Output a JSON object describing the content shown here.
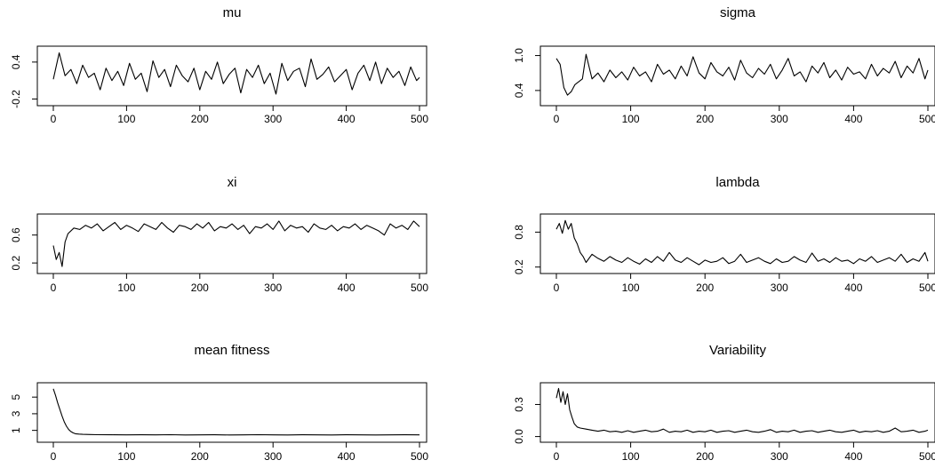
{
  "chart_data": [
    {
      "type": "line",
      "title": "mu",
      "xlabel": "",
      "ylabel": "",
      "xlim": [
        0,
        500
      ],
      "ylim": [
        -0.25,
        0.6
      ],
      "x_ticks": [
        0,
        100,
        200,
        300,
        400,
        500
      ],
      "y_ticks": [
        -0.2,
        0.4
      ],
      "y_tick_labels": [
        "-0.2",
        "0.4"
      ],
      "grid": false,
      "series": [
        {
          "x": [
            0,
            8,
            16,
            24,
            32,
            40,
            48,
            56,
            64,
            72,
            80,
            88,
            96,
            104,
            112,
            120,
            128,
            136,
            144,
            152,
            160,
            168,
            176,
            184,
            192,
            200,
            208,
            216,
            224,
            232,
            240,
            248,
            256,
            264,
            272,
            280,
            288,
            296,
            304,
            312,
            320,
            328,
            336,
            344,
            352,
            360,
            368,
            376,
            384,
            392,
            400,
            408,
            416,
            424,
            432,
            440,
            448,
            456,
            464,
            472,
            480,
            488,
            496,
            500
          ],
          "values": [
            0.12,
            0.55,
            0.18,
            0.28,
            0.05,
            0.35,
            0.15,
            0.22,
            -0.05,
            0.3,
            0.1,
            0.25,
            0.02,
            0.38,
            0.12,
            0.22,
            -0.08,
            0.42,
            0.15,
            0.28,
            0.0,
            0.35,
            0.18,
            0.08,
            0.3,
            -0.05,
            0.25,
            0.12,
            0.4,
            0.05,
            0.2,
            0.3,
            -0.1,
            0.28,
            0.15,
            0.35,
            0.05,
            0.22,
            -0.12,
            0.38,
            0.1,
            0.25,
            0.3,
            0.0,
            0.45,
            0.12,
            0.2,
            0.32,
            0.08,
            0.18,
            0.28,
            -0.05,
            0.22,
            0.35,
            0.1,
            0.4,
            0.05,
            0.3,
            0.15,
            0.25,
            0.02,
            0.32,
            0.1,
            0.15
          ]
        }
      ]
    },
    {
      "type": "line",
      "title": "sigma",
      "xlabel": "",
      "ylabel": "",
      "xlim": [
        0,
        500
      ],
      "ylim": [
        0.2,
        1.1
      ],
      "x_ticks": [
        0,
        100,
        200,
        300,
        400,
        500
      ],
      "y_ticks": [
        0.4,
        1.0
      ],
      "y_tick_labels": [
        "0.4",
        "1.0"
      ],
      "grid": false,
      "series": [
        {
          "x": [
            0,
            5,
            10,
            15,
            20,
            25,
            30,
            35,
            40,
            48,
            56,
            64,
            72,
            80,
            88,
            96,
            104,
            112,
            120,
            128,
            136,
            144,
            152,
            160,
            168,
            176,
            184,
            192,
            200,
            208,
            216,
            224,
            232,
            240,
            248,
            256,
            264,
            272,
            280,
            288,
            296,
            304,
            312,
            320,
            328,
            336,
            344,
            352,
            360,
            368,
            376,
            384,
            392,
            400,
            408,
            416,
            424,
            432,
            440,
            448,
            456,
            464,
            472,
            480,
            488,
            496,
            500
          ],
          "values": [
            0.95,
            0.85,
            0.45,
            0.32,
            0.38,
            0.5,
            0.55,
            0.6,
            1.02,
            0.6,
            0.7,
            0.55,
            0.75,
            0.62,
            0.72,
            0.58,
            0.8,
            0.65,
            0.72,
            0.55,
            0.85,
            0.68,
            0.75,
            0.6,
            0.82,
            0.65,
            0.98,
            0.7,
            0.6,
            0.88,
            0.72,
            0.65,
            0.8,
            0.58,
            0.92,
            0.7,
            0.62,
            0.78,
            0.68,
            0.85,
            0.6,
            0.75,
            0.95,
            0.65,
            0.72,
            0.55,
            0.82,
            0.7,
            0.88,
            0.62,
            0.75,
            0.58,
            0.8,
            0.68,
            0.72,
            0.6,
            0.85,
            0.65,
            0.78,
            0.7,
            0.9,
            0.62,
            0.82,
            0.7,
            0.95,
            0.6,
            0.75
          ]
        }
      ]
    },
    {
      "type": "line",
      "title": "xi",
      "xlabel": "",
      "ylabel": "",
      "xlim": [
        0,
        500
      ],
      "ylim": [
        0.1,
        0.85
      ],
      "x_ticks": [
        0,
        100,
        200,
        300,
        400,
        500
      ],
      "y_ticks": [
        0.2,
        0.6
      ],
      "y_tick_labels": [
        "0.2",
        "0.6"
      ],
      "grid": false,
      "series": [
        {
          "x": [
            0,
            4,
            8,
            12,
            16,
            20,
            28,
            36,
            44,
            52,
            60,
            68,
            76,
            84,
            92,
            100,
            108,
            116,
            124,
            132,
            140,
            148,
            156,
            164,
            172,
            180,
            188,
            196,
            204,
            212,
            220,
            228,
            236,
            244,
            252,
            260,
            268,
            276,
            284,
            292,
            300,
            308,
            316,
            324,
            332,
            340,
            348,
            356,
            364,
            372,
            380,
            388,
            396,
            404,
            412,
            420,
            428,
            436,
            444,
            452,
            460,
            468,
            476,
            484,
            492,
            500
          ],
          "values": [
            0.45,
            0.25,
            0.35,
            0.15,
            0.5,
            0.62,
            0.7,
            0.68,
            0.74,
            0.7,
            0.76,
            0.66,
            0.72,
            0.78,
            0.68,
            0.74,
            0.7,
            0.65,
            0.76,
            0.72,
            0.68,
            0.78,
            0.7,
            0.64,
            0.74,
            0.72,
            0.68,
            0.76,
            0.7,
            0.78,
            0.66,
            0.72,
            0.7,
            0.76,
            0.68,
            0.74,
            0.62,
            0.72,
            0.7,
            0.76,
            0.68,
            0.8,
            0.66,
            0.74,
            0.7,
            0.72,
            0.64,
            0.76,
            0.7,
            0.68,
            0.74,
            0.66,
            0.72,
            0.7,
            0.76,
            0.68,
            0.74,
            0.7,
            0.66,
            0.6,
            0.76,
            0.7,
            0.74,
            0.68,
            0.8,
            0.72
          ]
        }
      ]
    },
    {
      "type": "line",
      "title": "lambda",
      "xlabel": "",
      "ylabel": "",
      "xlim": [
        0,
        500
      ],
      "ylim": [
        0.15,
        1.05
      ],
      "x_ticks": [
        0,
        100,
        200,
        300,
        400,
        500
      ],
      "y_ticks": [
        0.2,
        0.8
      ],
      "y_tick_labels": [
        "0.2",
        "0.8"
      ],
      "grid": false,
      "series": [
        {
          "x": [
            0,
            4,
            8,
            12,
            16,
            20,
            24,
            28,
            32,
            36,
            40,
            48,
            56,
            64,
            72,
            80,
            88,
            96,
            104,
            112,
            120,
            128,
            136,
            144,
            152,
            160,
            168,
            176,
            184,
            192,
            200,
            208,
            216,
            224,
            232,
            240,
            248,
            256,
            264,
            272,
            280,
            288,
            296,
            304,
            312,
            320,
            328,
            336,
            344,
            352,
            360,
            368,
            376,
            384,
            392,
            400,
            408,
            416,
            424,
            432,
            440,
            448,
            456,
            464,
            472,
            480,
            488,
            496,
            500
          ],
          "values": [
            0.85,
            0.95,
            0.78,
            1.0,
            0.85,
            0.95,
            0.7,
            0.6,
            0.45,
            0.38,
            0.28,
            0.42,
            0.35,
            0.3,
            0.38,
            0.32,
            0.28,
            0.36,
            0.3,
            0.25,
            0.34,
            0.28,
            0.38,
            0.3,
            0.45,
            0.32,
            0.28,
            0.36,
            0.3,
            0.24,
            0.32,
            0.28,
            0.3,
            0.36,
            0.26,
            0.3,
            0.42,
            0.28,
            0.32,
            0.36,
            0.3,
            0.26,
            0.34,
            0.28,
            0.3,
            0.38,
            0.32,
            0.28,
            0.44,
            0.3,
            0.34,
            0.28,
            0.36,
            0.3,
            0.32,
            0.26,
            0.34,
            0.3,
            0.38,
            0.28,
            0.32,
            0.36,
            0.3,
            0.42,
            0.28,
            0.34,
            0.3,
            0.45,
            0.3
          ]
        }
      ]
    },
    {
      "type": "line",
      "title": "mean fitness",
      "xlabel": "",
      "ylabel": "",
      "xlim": [
        0,
        500
      ],
      "ylim": [
        0,
        6.3
      ],
      "x_ticks": [
        0,
        100,
        200,
        300,
        400,
        500
      ],
      "y_ticks": [
        1,
        3,
        5
      ],
      "y_tick_labels": [
        "1",
        "3",
        "5"
      ],
      "grid": false,
      "series": [
        {
          "x": [
            0,
            3,
            6,
            9,
            12,
            15,
            18,
            21,
            24,
            27,
            30,
            35,
            40,
            50,
            60,
            80,
            100,
            120,
            140,
            160,
            180,
            200,
            220,
            240,
            260,
            280,
            300,
            320,
            340,
            360,
            380,
            400,
            420,
            440,
            460,
            480,
            500
          ],
          "values": [
            6.0,
            5.2,
            4.3,
            3.5,
            2.7,
            2.0,
            1.5,
            1.1,
            0.85,
            0.7,
            0.6,
            0.55,
            0.52,
            0.5,
            0.48,
            0.47,
            0.46,
            0.47,
            0.46,
            0.48,
            0.45,
            0.46,
            0.47,
            0.45,
            0.46,
            0.48,
            0.46,
            0.45,
            0.47,
            0.46,
            0.45,
            0.47,
            0.46,
            0.45,
            0.46,
            0.47,
            0.46
          ]
        }
      ]
    },
    {
      "type": "line",
      "title": "Variability",
      "xlabel": "",
      "ylabel": "",
      "xlim": [
        0,
        500
      ],
      "ylim": [
        -0.02,
        0.47
      ],
      "x_ticks": [
        0,
        100,
        200,
        300,
        400,
        500
      ],
      "y_ticks": [
        0.0,
        0.3
      ],
      "y_tick_labels": [
        "0.0",
        "0.3"
      ],
      "grid": false,
      "series": [
        {
          "x": [
            0,
            3,
            6,
            9,
            12,
            15,
            18,
            21,
            24,
            28,
            32,
            40,
            48,
            56,
            64,
            72,
            80,
            88,
            96,
            104,
            112,
            120,
            128,
            136,
            144,
            152,
            160,
            168,
            176,
            184,
            192,
            200,
            208,
            216,
            224,
            232,
            240,
            248,
            256,
            264,
            272,
            280,
            288,
            296,
            304,
            312,
            320,
            328,
            336,
            344,
            352,
            360,
            368,
            376,
            384,
            392,
            400,
            408,
            416,
            424,
            432,
            440,
            448,
            456,
            464,
            472,
            480,
            488,
            496,
            500
          ],
          "values": [
            0.36,
            0.45,
            0.32,
            0.42,
            0.3,
            0.4,
            0.25,
            0.18,
            0.12,
            0.09,
            0.08,
            0.07,
            0.06,
            0.05,
            0.06,
            0.045,
            0.05,
            0.04,
            0.055,
            0.04,
            0.05,
            0.06,
            0.045,
            0.05,
            0.07,
            0.04,
            0.05,
            0.045,
            0.06,
            0.04,
            0.05,
            0.045,
            0.06,
            0.04,
            0.05,
            0.055,
            0.04,
            0.05,
            0.06,
            0.045,
            0.04,
            0.05,
            0.065,
            0.04,
            0.05,
            0.045,
            0.06,
            0.04,
            0.05,
            0.055,
            0.04,
            0.05,
            0.06,
            0.045,
            0.04,
            0.05,
            0.06,
            0.04,
            0.05,
            0.045,
            0.055,
            0.04,
            0.05,
            0.08,
            0.045,
            0.05,
            0.06,
            0.04,
            0.05,
            0.06
          ]
        }
      ]
    }
  ]
}
